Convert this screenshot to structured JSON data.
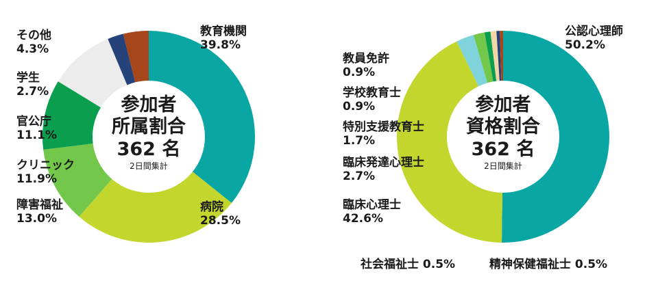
{
  "chart_data": [
    {
      "type": "pie",
      "center": {
        "line1": "参加者",
        "line2": "所属割合",
        "count": "362",
        "count_unit": "名",
        "note": "2日間集計"
      },
      "slices": [
        {
          "label": "教育機関",
          "value": 39.8,
          "value_text": "39.8%",
          "color": "#0aa6a3"
        },
        {
          "label": "病院",
          "value": 28.5,
          "value_text": "28.5%",
          "color": "#c2d62e"
        },
        {
          "label": "障害福祉",
          "value": 13.0,
          "value_text": "13.0%",
          "color": "#73c84b"
        },
        {
          "label": "クリニック",
          "value": 11.9,
          "value_text": "11.9%",
          "color": "#0b9e4f"
        },
        {
          "label": "官公庁",
          "value": 11.1,
          "value_text": "11.1%",
          "color": "#ececec"
        },
        {
          "label": "学生",
          "value": 2.7,
          "value_text": "2.7%",
          "color": "#26427a"
        },
        {
          "label": "その他",
          "value": 4.3,
          "value_text": "4.3%",
          "color": "#a5471a"
        }
      ]
    },
    {
      "type": "pie",
      "center": {
        "line1": "参加者",
        "line2": "資格割合",
        "count": "362",
        "count_unit": "名",
        "note": "2日間集計"
      },
      "slices": [
        {
          "label": "公認心理師",
          "value": 50.2,
          "value_text": "50.2%",
          "color": "#0aa6a3"
        },
        {
          "label": "臨床心理士",
          "value": 42.6,
          "value_text": "42.6%",
          "color": "#c2d62e"
        },
        {
          "label": "臨床発達心理士",
          "value": 2.7,
          "value_text": "2.7%",
          "color": "#7fd3db"
        },
        {
          "label": "特別支援教育士",
          "value": 1.7,
          "value_text": "1.7%",
          "color": "#73c84b"
        },
        {
          "label": "学校教育士",
          "value": 0.9,
          "value_text": "0.9%",
          "color": "#0b9e4f"
        },
        {
          "label": "教員免許",
          "value": 0.9,
          "value_text": "0.9%",
          "color": "#f1d6a8"
        },
        {
          "label": "社会福祉士",
          "value": 0.5,
          "value_text": "0.5%",
          "color": "#26427a"
        },
        {
          "label": "精神保健福祉士",
          "value": 0.5,
          "value_text": "0.5%",
          "color": "#a5471a"
        }
      ]
    }
  ]
}
